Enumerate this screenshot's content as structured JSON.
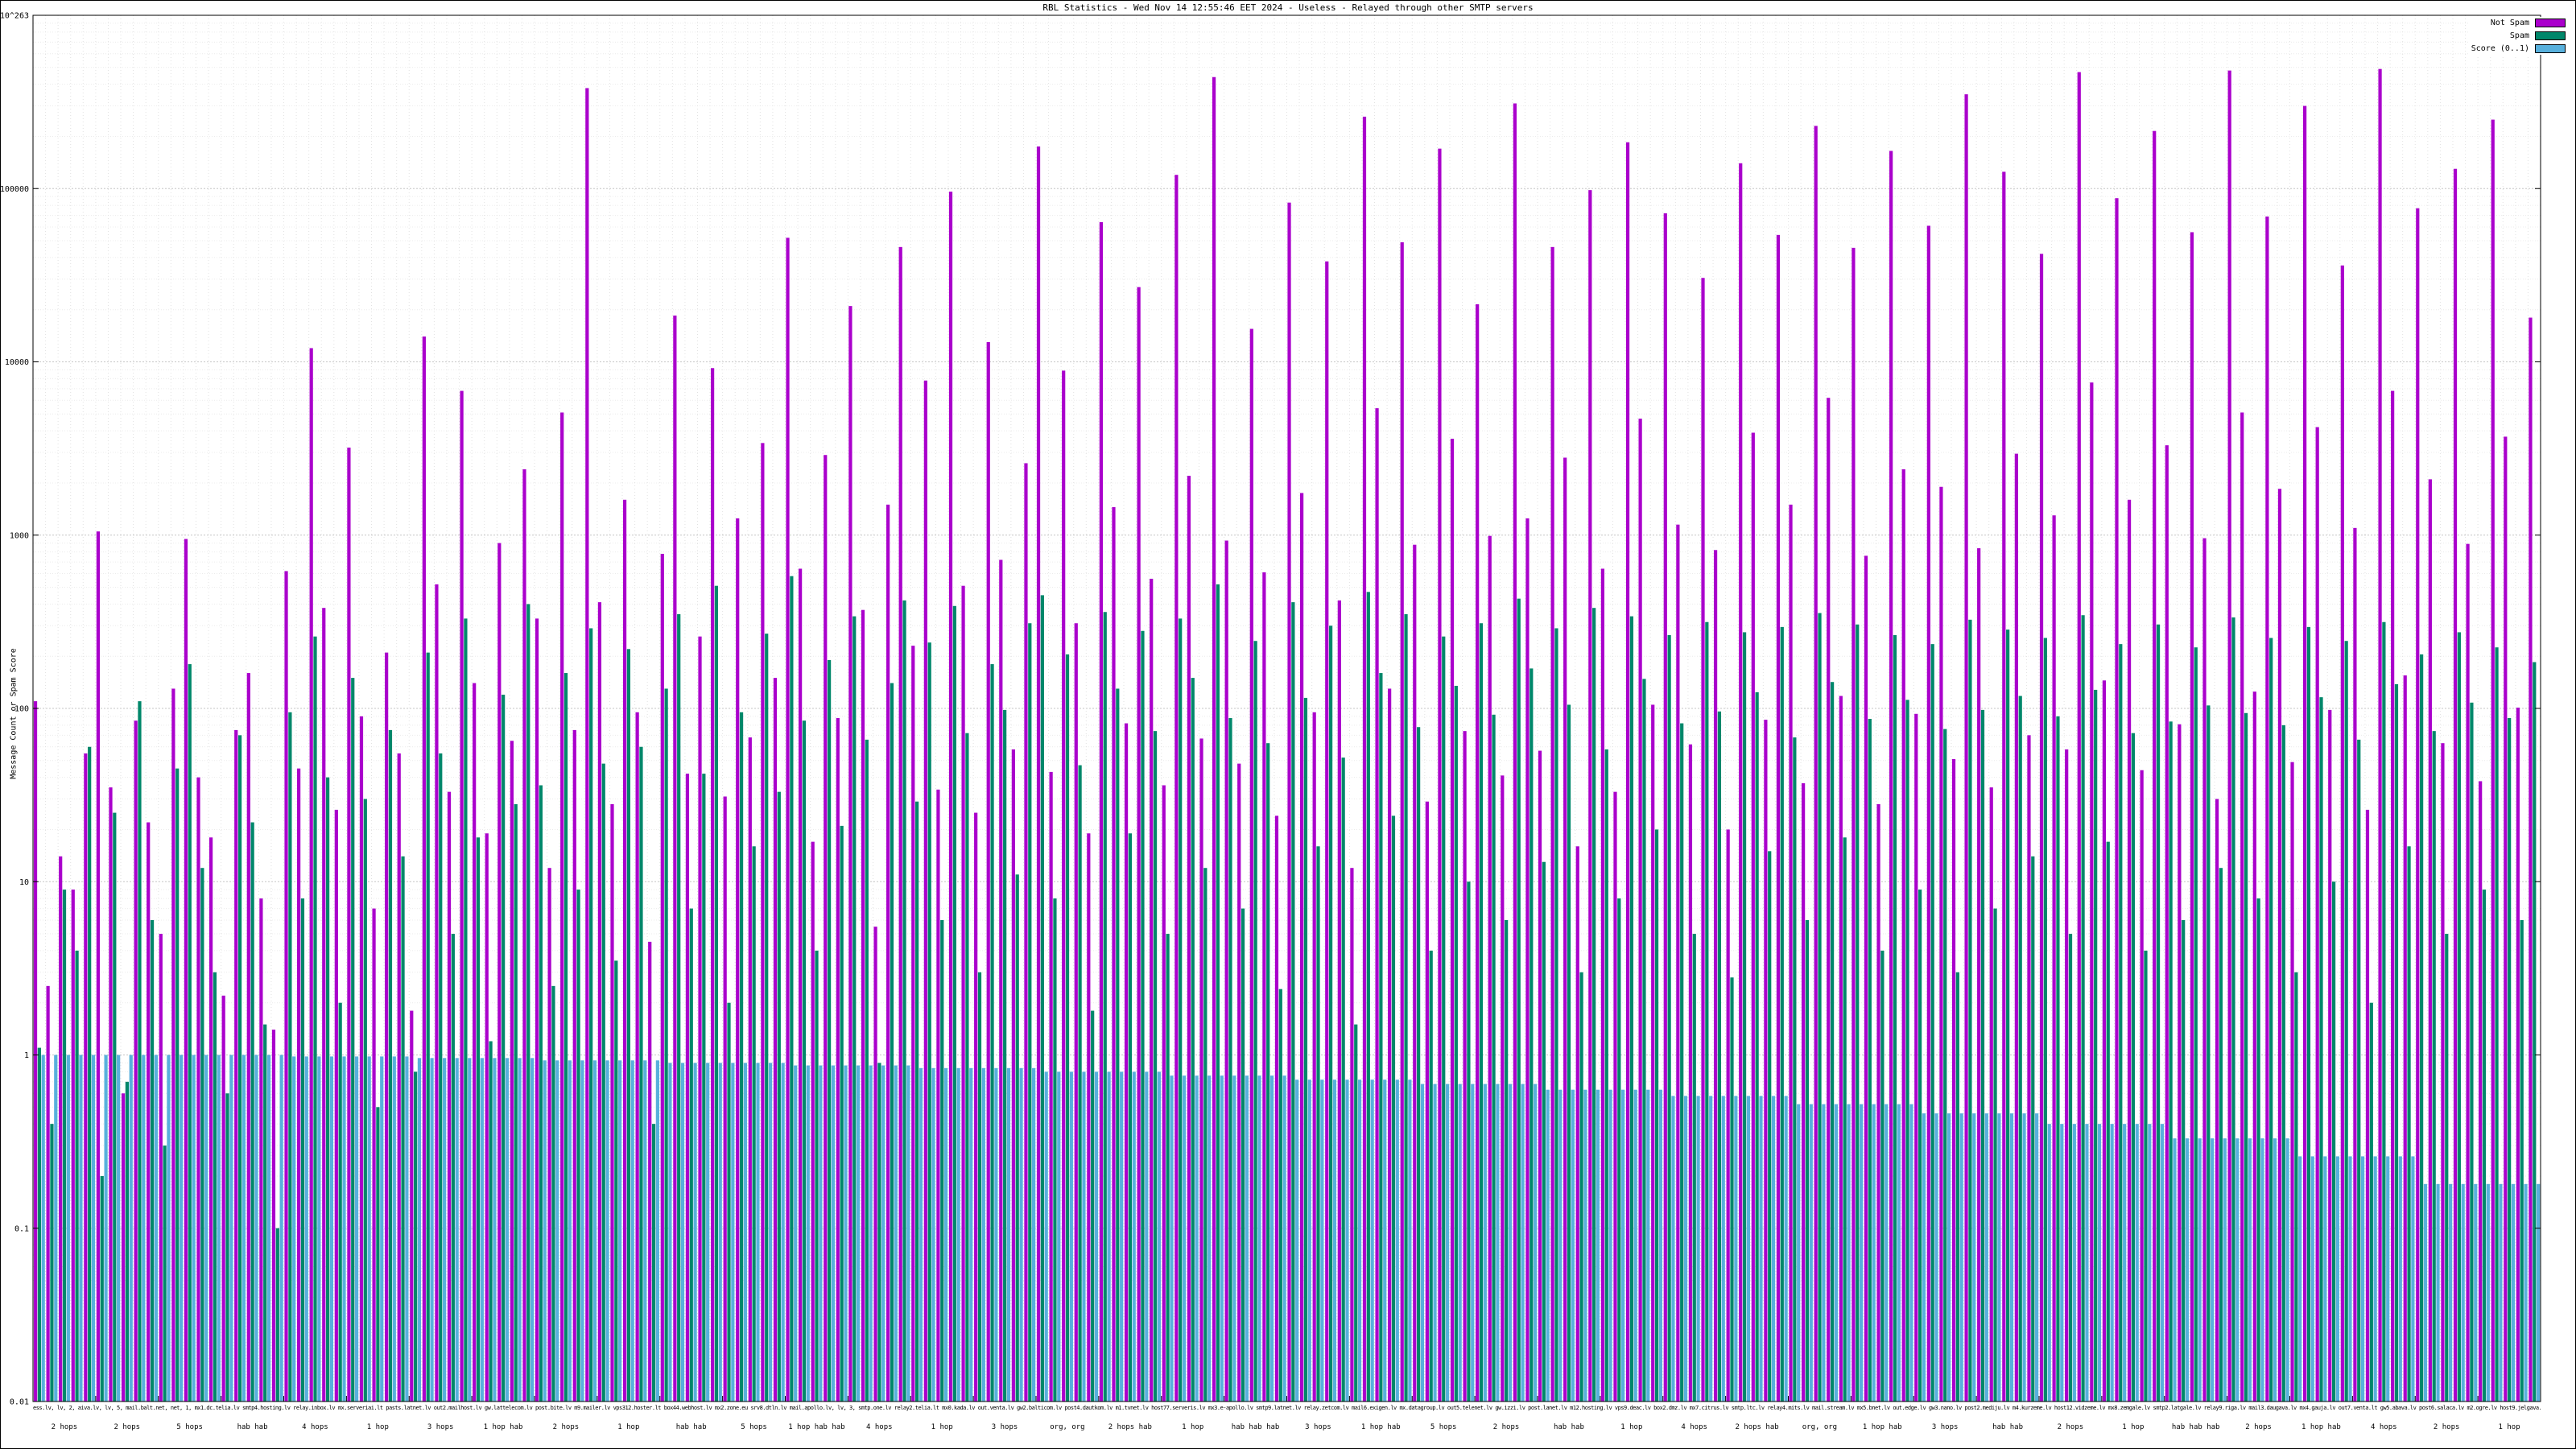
{
  "chart_data": {
    "type": "bar",
    "title": "RBL Statistics - Wed Nov 14 12:55:46 EET 2024 - Useless - Relayed through other SMTP servers",
    "ylabel": "Message Count or Spam Score",
    "y_scale": "log",
    "ylim": [
      0.01,
      1000000
    ],
    "grid": true,
    "legend_position": "top-right",
    "ytick_labels": [
      "1x10^263",
      "100000",
      "10000",
      "1000",
      "100",
      "10",
      "1",
      "0.1",
      "0.01"
    ],
    "legend": [
      {
        "label": "Not Spam",
        "color": "#aa00cc"
      },
      {
        "label": "Spam",
        "color": "#00876a"
      },
      {
        "label": "Score (0..1)",
        "color": "#58b0dc"
      }
    ],
    "series": [
      {
        "name": "Not Spam",
        "color": "#aa00cc",
        "values": [
          110,
          2.5,
          14,
          9,
          55,
          1050,
          35,
          0.6,
          85,
          22,
          5,
          130,
          950,
          40,
          18,
          2.2,
          75,
          160,
          8,
          1.4,
          620,
          45,
          12000,
          380,
          26,
          3200,
          90,
          7,
          210,
          55,
          1.8,
          14000,
          520,
          33,
          6800,
          140,
          19,
          900,
          65,
          2400,
          330,
          12,
          5100,
          75,
          380000,
          410,
          28,
          1600,
          95,
          4.5,
          780,
          18500,
          42,
          260,
          9200,
          31,
          1250,
          68,
          3400,
          150,
          52000,
          640,
          17,
          2900,
          88,
          21000,
          370,
          5.5,
          1500,
          46000,
          230,
          7800,
          34,
          96000,
          510,
          25,
          13000,
          720,
          58,
          2600,
          175000,
          43,
          8900,
          310,
          19,
          64000,
          1450,
          82,
          27000,
          560,
          36,
          120000,
          2200,
          67,
          440000,
          930,
          48,
          15500,
          610,
          24,
          83000,
          1750,
          95,
          38000,
          420,
          12,
          260000,
          5400,
          130,
          49000,
          880,
          29,
          170000,
          3600,
          74,
          21500,
          990,
          41,
          310000,
          1250,
          57,
          46000,
          2800,
          16,
          98000,
          640,
          33,
          185000,
          4700,
          105,
          72000,
          1150,
          62,
          30500,
          820,
          20,
          140000,
          3900,
          86,
          54000,
          1500,
          37,
          230000,
          6200,
          118,
          45500,
          760,
          28,
          165000,
          2400,
          93,
          61000,
          1900,
          51,
          350000,
          840,
          35,
          125000,
          2950,
          70,
          42000,
          1300,
          58,
          470000,
          7600,
          145,
          88000,
          1600,
          44,
          215000,
          3300,
          81,
          56000,
          960,
          30,
          480000,
          5100,
          125,
          69000,
          1850,
          49,
          300000,
          4200,
          98,
          36000,
          1100,
          26,
          490000,
          6800,
          155,
          77000,
          2100,
          63,
          130000,
          890,
          38,
          250000,
          3700,
          101,
          18000
        ]
      },
      {
        "name": "Spam",
        "color": "#00876a",
        "values": [
          1.1,
          0.4,
          9,
          4,
          60,
          0.2,
          25,
          0.7,
          110,
          6,
          0.3,
          45,
          180,
          12,
          3,
          0.6,
          70,
          22,
          1.5,
          0.1,
          95,
          8,
          260,
          40,
          2,
          150,
          30,
          0.5,
          75,
          14,
          0.8,
          210,
          55,
          5,
          330,
          18,
          1.2,
          120,
          28,
          400,
          36,
          2.5,
          160,
          9,
          290,
          48,
          3.5,
          220,
          60,
          0.4,
          130,
          350,
          7,
          42,
          510,
          2,
          95,
          16,
          270,
          33,
          580,
          85,
          4,
          190,
          21,
          340,
          66,
          0.9,
          140,
          420,
          29,
          240,
          6,
          390,
          72,
          3,
          180,
          98,
          11,
          310,
          450,
          8,
          205,
          47,
          1.8,
          360,
          130,
          19,
          280,
          74,
          5,
          330,
          150,
          12,
          520,
          88,
          7,
          245,
          63,
          2.4,
          410,
          115,
          16,
          300,
          52,
          1.5,
          470,
          160,
          24,
          350,
          78,
          4,
          260,
          135,
          10,
          310,
          92,
          6,
          430,
          170,
          13,
          290,
          105,
          3,
          380,
          58,
          8,
          340,
          148,
          20,
          265,
          82,
          5,
          315,
          96,
          2.8,
          275,
          124,
          15,
          295,
          68,
          6,
          355,
          142,
          18,
          305,
          87,
          4,
          265,
          112,
          9,
          235,
          76,
          3,
          325,
          98,
          7,
          285,
          118,
          14,
          255,
          90,
          5,
          345,
          128,
          17,
          235,
          72,
          4,
          305,
          84,
          6,
          225,
          104,
          12,
          335,
          94,
          8,
          255,
          80,
          3,
          295,
          116,
          10,
          245,
          66,
          2,
          315,
          138,
          16,
          205,
          74,
          5,
          275,
          108,
          9,
          225,
          88,
          6,
          185
        ]
      },
      {
        "name": "Score (0..1)",
        "color": "#58b0dc",
        "values": [
          1,
          1,
          1,
          1,
          1,
          1,
          1,
          1,
          1,
          1,
          1,
          1,
          1,
          1,
          1,
          1,
          1,
          1,
          1,
          1,
          0.98,
          0.98,
          0.98,
          0.98,
          0.98,
          0.98,
          0.98,
          0.98,
          0.98,
          0.98,
          0.96,
          0.96,
          0.96,
          0.96,
          0.96,
          0.96,
          0.96,
          0.96,
          0.96,
          0.96,
          0.93,
          0.93,
          0.93,
          0.93,
          0.93,
          0.93,
          0.93,
          0.93,
          0.93,
          0.93,
          0.9,
          0.9,
          0.9,
          0.9,
          0.9,
          0.9,
          0.9,
          0.9,
          0.9,
          0.9,
          0.87,
          0.87,
          0.87,
          0.87,
          0.87,
          0.87,
          0.87,
          0.87,
          0.87,
          0.87,
          0.84,
          0.84,
          0.84,
          0.84,
          0.84,
          0.84,
          0.84,
          0.84,
          0.84,
          0.84,
          0.8,
          0.8,
          0.8,
          0.8,
          0.8,
          0.8,
          0.8,
          0.8,
          0.8,
          0.8,
          0.76,
          0.76,
          0.76,
          0.76,
          0.76,
          0.76,
          0.76,
          0.76,
          0.76,
          0.76,
          0.72,
          0.72,
          0.72,
          0.72,
          0.72,
          0.72,
          0.72,
          0.72,
          0.72,
          0.72,
          0.68,
          0.68,
          0.68,
          0.68,
          0.68,
          0.68,
          0.68,
          0.68,
          0.68,
          0.68,
          0.63,
          0.63,
          0.63,
          0.63,
          0.63,
          0.63,
          0.63,
          0.63,
          0.63,
          0.63,
          0.58,
          0.58,
          0.58,
          0.58,
          0.58,
          0.58,
          0.58,
          0.58,
          0.58,
          0.58,
          0.52,
          0.52,
          0.52,
          0.52,
          0.52,
          0.52,
          0.52,
          0.52,
          0.52,
          0.52,
          0.46,
          0.46,
          0.46,
          0.46,
          0.46,
          0.46,
          0.46,
          0.46,
          0.46,
          0.46,
          0.4,
          0.4,
          0.4,
          0.4,
          0.4,
          0.4,
          0.4,
          0.4,
          0.4,
          0.4,
          0.33,
          0.33,
          0.33,
          0.33,
          0.33,
          0.33,
          0.33,
          0.33,
          0.33,
          0.33,
          0.26,
          0.26,
          0.26,
          0.26,
          0.26,
          0.26,
          0.26,
          0.26,
          0.26,
          0.26,
          0.18,
          0.18,
          0.18,
          0.18,
          0.18,
          0.18,
          0.18,
          0.18,
          0.18,
          0.18
        ]
      }
    ],
    "xlabels": [
      "2 hops",
      "2 hops",
      "5 hops",
      "hab hab",
      "4 hops",
      "1 hop",
      "3 hops",
      "1 hop hab",
      "2 hops",
      "1 hop",
      "hab hab",
      "5 hops",
      "1 hop hab hab",
      "4 hops",
      "1 hop",
      "3 hops",
      "org, org",
      "2 hops hab",
      "1 hop",
      "hab hab hab",
      "3 hops",
      "1 hop hab",
      "5 hops",
      "2 hops",
      "hab hab",
      "1 hop",
      "4 hops",
      "2 hops hab",
      "org, org",
      "1 hop hab",
      "3 hops",
      "hab hab",
      "2 hops",
      "1 hop",
      "hab hab hab",
      "2 hops",
      "1 hop hab",
      "4 hops",
      "2 hops",
      "1 hop"
    ],
    "xstrip": "ess.lv, lv, 2, aiva.lv, lv, 5, mail.balt.net, net, 1, mx1.dc.telia.lv smtp4.hosting.lv relay.inbox.lv mx.serveriai.lt pasts.latnet.lv out2.mailhost.lv gw.lattelecom.lv post.bite.lv m9.mailer.lv vps312.hoster.lt box44.webhost.lv mx2.zone.eu srv8.dtln.lv mail.apollo.lv, lv, 3, smtp.one.lv relay2.telia.lt mx0.kada.lv out.venta.lv gw2.balticom.lv post4.dautkom.lv m1.tvnet.lv host77.serveris.lv mx3.e-apollo.lv smtp9.latnet.lv relay.zetcom.lv mail6.exigen.lv mx.datagroup.lv out5.telenet.lv gw.izzi.lv post.lanet.lv m12.hosting.lv vps9.deac.lv box2.dmz.lv mx7.citrus.lv smtp.ltc.lv relay4.mits.lv mail.stream.lv mx5.bnet.lv out.edge.lv gw3.nano.lv post2.mediju.lv m4.kurzeme.lv host12.vidzeme.lv mx8.zemgale.lv smtp2.latgale.lv relay9.riga.lv mail3.daugava.lv mx4.gauja.lv out7.venta.lt gw5.abava.lv post6.salaca.lv m2.ogre.lv host9.jelgava.lv mx6.liepaja.lv smtp7.ventspils.lv relay3.rezekne.lv mail8.valmiera.lv mx9.cesis.lv out4.sigulda.lv gw7.tukums.lv post8.talsi.lv m6.kuldiga.lv host3.saldus.lv mx1.dobele.lv smtp5.bauska.lv relay7.aizkraukle.lv mail2.jekabpils.lv"
  }
}
